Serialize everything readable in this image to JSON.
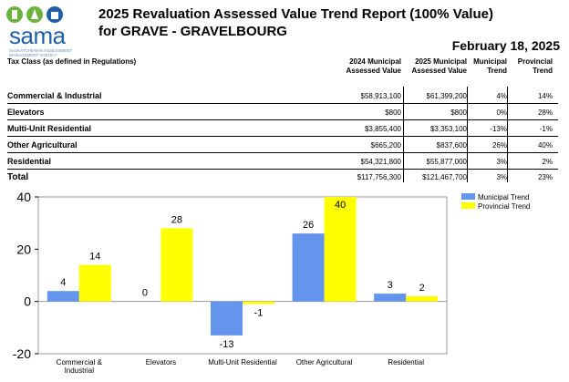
{
  "logo": {
    "text": "sama",
    "subtitle": "SASKATCHEWAN ASSESSMENT MANAGEMENT AGENCY"
  },
  "report": {
    "title_line1": "2025 Revaluation Assessed Value Trend Report (100% Value)",
    "title_line2": "for GRAVE - GRAVELBOURG",
    "date": "February 18, 2025"
  },
  "table": {
    "headers": {
      "tax_class": "Tax Class (as defined in Regulations)",
      "av2024": "2024 Municipal Assessed Value",
      "av2025": "2025 Municipal Assessed Value",
      "municipal_trend": "Municipal Trend",
      "provincial_trend": "Provincial Trend"
    },
    "rows": [
      {
        "label": "Commercial & Industrial",
        "av2024": "$58,913,100",
        "av2025": "$61,399,200",
        "mun": "4%",
        "prov": "14%"
      },
      {
        "label": "Elevators",
        "av2024": "$800",
        "av2025": "$800",
        "mun": "0%",
        "prov": "28%"
      },
      {
        "label": "Multi-Unit Residential",
        "av2024": "$3,855,400",
        "av2025": "$3,353,100",
        "mun": "-13%",
        "prov": "-1%"
      },
      {
        "label": "Other Agricultural",
        "av2024": "$665,200",
        "av2025": "$837,600",
        "mun": "26%",
        "prov": "40%"
      },
      {
        "label": "Residential",
        "av2024": "$54,321,800",
        "av2025": "$55,877,000",
        "mun": "3%",
        "prov": "2%"
      }
    ],
    "total": {
      "label": "Total",
      "av2024": "$117,756,300",
      "av2025": "$121,467,700",
      "mun": "3%",
      "prov": "23%"
    }
  },
  "chart_data": {
    "type": "bar",
    "categories": [
      "Commercial &\nIndustrial",
      "Elevators",
      "Multi-Unit Residential",
      "Other Agricultural",
      "Residential"
    ],
    "series": [
      {
        "name": "Municipal Trend",
        "values": [
          4,
          0,
          -13,
          26,
          3
        ],
        "color": "#6495ed"
      },
      {
        "name": "Provincial Trend",
        "values": [
          14,
          28,
          -1,
          40,
          2
        ],
        "color": "#ffff00"
      }
    ],
    "ylim": [
      -20,
      40
    ],
    "yticks": [
      40,
      20,
      0,
      -20
    ],
    "legend": "top-right",
    "grid": false
  }
}
